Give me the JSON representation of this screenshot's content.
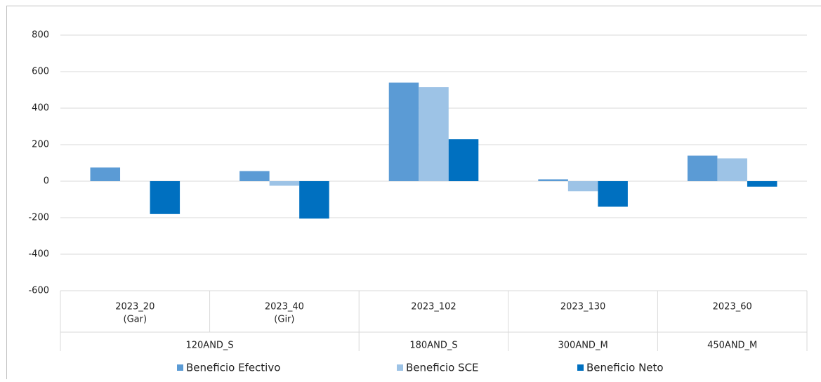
{
  "chart_data": {
    "type": "bar",
    "categories": [
      [
        "2023_20",
        "(Gar)"
      ],
      [
        "2023_40",
        "(Gir)"
      ],
      [
        "2023_102"
      ],
      [
        "2023_130"
      ],
      [
        "2023_60"
      ]
    ],
    "parents": [
      "120AND_S",
      "120AND_S",
      "180AND_S",
      "300AND_M",
      "450AND_M"
    ],
    "series": [
      {
        "name": "Beneficio Efectivo",
        "color": "#5b9bd5",
        "values": [
          75,
          55,
          540,
          10,
          140
        ]
      },
      {
        "name": "Beneficio SCE",
        "color": "#9dc3e6",
        "values": [
          0,
          -25,
          515,
          -55,
          125
        ]
      },
      {
        "name": "Beneficio Neto",
        "color": "#0070c0",
        "values": [
          -180,
          -205,
          230,
          -140,
          -30
        ]
      }
    ],
    "ylim": [
      -600,
      800
    ],
    "yticks": [
      -600,
      -400,
      -200,
      0,
      200,
      400,
      600,
      800
    ],
    "grid": true
  }
}
